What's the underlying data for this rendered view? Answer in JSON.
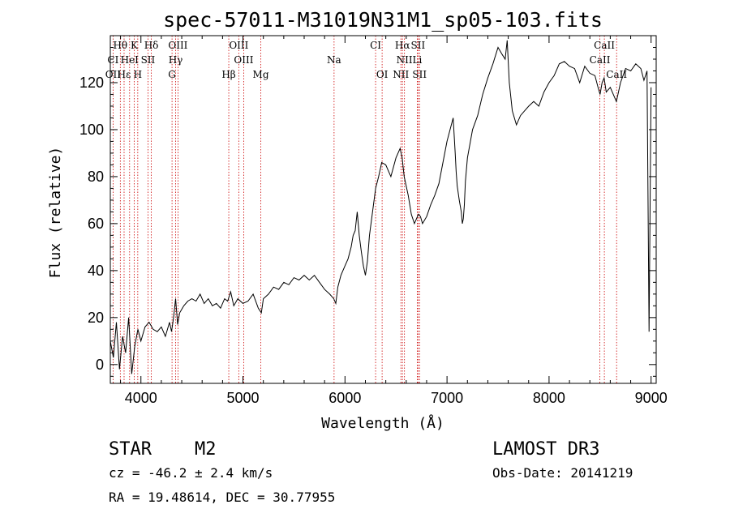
{
  "chart_data": {
    "type": "line",
    "title": "spec-57011-M31019N31M1_sp05-103.fits",
    "xlabel": "Wavelength (Å)",
    "ylabel": "Flux (relative)",
    "xlim": [
      3700,
      9050
    ],
    "ylim": [
      -8,
      140
    ],
    "xticks": [
      4000,
      5000,
      6000,
      7000,
      8000,
      9000
    ],
    "yticks": [
      0,
      20,
      40,
      60,
      80,
      100,
      120
    ],
    "series": [
      {
        "name": "spectrum",
        "x": [
          3700,
          3730,
          3760,
          3790,
          3820,
          3850,
          3880,
          3910,
          3940,
          3970,
          4000,
          4040,
          4080,
          4120,
          4160,
          4200,
          4240,
          4280,
          4300,
          4320,
          4340,
          4360,
          4380,
          4420,
          4460,
          4500,
          4540,
          4580,
          4620,
          4660,
          4700,
          4740,
          4780,
          4820,
          4850,
          4880,
          4910,
          4950,
          5000,
          5050,
          5100,
          5150,
          5180,
          5200,
          5250,
          5300,
          5350,
          5400,
          5450,
          5500,
          5550,
          5600,
          5650,
          5700,
          5750,
          5800,
          5850,
          5890,
          5910,
          5930,
          5960,
          6000,
          6030,
          6060,
          6080,
          6100,
          6120,
          6140,
          6160,
          6180,
          6200,
          6220,
          6240,
          6270,
          6300,
          6330,
          6360,
          6400,
          6450,
          6500,
          6540,
          6560,
          6580,
          6600,
          6620,
          6650,
          6680,
          6700,
          6720,
          6740,
          6760,
          6800,
          6840,
          6880,
          6920,
          6960,
          7000,
          7030,
          7060,
          7080,
          7090,
          7100,
          7120,
          7140,
          7150,
          7160,
          7170,
          7180,
          7200,
          7250,
          7300,
          7350,
          7400,
          7450,
          7500,
          7540,
          7570,
          7590,
          7610,
          7640,
          7680,
          7720,
          7760,
          7800,
          7850,
          7900,
          7950,
          8000,
          8050,
          8100,
          8150,
          8200,
          8250,
          8300,
          8350,
          8400,
          8450,
          8480,
          8500,
          8520,
          8540,
          8560,
          8600,
          8640,
          8660,
          8680,
          8700,
          8750,
          8800,
          8850,
          8900,
          8930,
          8960,
          8980,
          9000
        ],
        "y": [
          10,
          3,
          18,
          -2,
          12,
          5,
          20,
          -4,
          8,
          15,
          10,
          16,
          18,
          15,
          14,
          16,
          12,
          18,
          14,
          20,
          28,
          17,
          22,
          25,
          27,
          28,
          27,
          30,
          26,
          28,
          25,
          26,
          24,
          28,
          27,
          31,
          25,
          28,
          26,
          27,
          30,
          24,
          22,
          28,
          30,
          33,
          32,
          35,
          34,
          37,
          36,
          38,
          36,
          38,
          35,
          32,
          30,
          28,
          26,
          33,
          38,
          42,
          45,
          50,
          55,
          57,
          65,
          55,
          48,
          42,
          38,
          44,
          55,
          65,
          75,
          80,
          86,
          85,
          80,
          88,
          92,
          88,
          80,
          76,
          72,
          64,
          60,
          62,
          64,
          63,
          60,
          63,
          68,
          72,
          77,
          86,
          95,
          100,
          105,
          90,
          82,
          76,
          70,
          65,
          60,
          62,
          68,
          78,
          88,
          100,
          106,
          115,
          122,
          128,
          135,
          132,
          130,
          138,
          120,
          108,
          102,
          106,
          108,
          110,
          112,
          110,
          116,
          120,
          123,
          128,
          129,
          127,
          126,
          120,
          127,
          124,
          123,
          118,
          115,
          120,
          122,
          116,
          118,
          114,
          112,
          116,
          120,
          126,
          125,
          128,
          126,
          121,
          125,
          14,
          118
        ]
      }
    ],
    "spectral_lines": [
      {
        "name": "Hθ",
        "wave": 3798,
        "row": 1
      },
      {
        "name": "K",
        "wave": 3934,
        "row": 1
      },
      {
        "name": "Hδ",
        "wave": 4102,
        "row": 1
      },
      {
        "name": "OIII",
        "wave": 4363,
        "row": 1
      },
      {
        "name": "OIII",
        "wave": 4959,
        "row": 1
      },
      {
        "name": "CI",
        "wave": 6300,
        "row": 1
      },
      {
        "name": "Hα",
        "wave": 6563,
        "row": 1
      },
      {
        "name": "SII",
        "wave": 6716,
        "row": 1
      },
      {
        "name": "CaII",
        "wave": 8542,
        "row": 1
      },
      {
        "name": "CI",
        "wave": 3727,
        "row": 2
      },
      {
        "name": "HeI",
        "wave": 3889,
        "row": 2
      },
      {
        "name": "SII",
        "wave": 4069,
        "row": 2
      },
      {
        "name": "Hγ",
        "wave": 4340,
        "row": 2
      },
      {
        "name": "OIII",
        "wave": 5007,
        "row": 2
      },
      {
        "name": "Na",
        "wave": 5893,
        "row": 2
      },
      {
        "name": "NII",
        "wave": 6583,
        "row": 2
      },
      {
        "name": "Li",
        "wave": 6708,
        "row": 2
      },
      {
        "name": "CaII",
        "wave": 8498,
        "row": 2
      },
      {
        "name": "OII",
        "wave": 3727,
        "row": 3
      },
      {
        "name": "Hε",
        "wave": 3835,
        "row": 3
      },
      {
        "name": "H",
        "wave": 3969,
        "row": 3
      },
      {
        "name": "G",
        "wave": 4305,
        "row": 3
      },
      {
        "name": "Hβ",
        "wave": 4861,
        "row": 3
      },
      {
        "name": "Mg",
        "wave": 5175,
        "row": 3
      },
      {
        "name": "OI",
        "wave": 6364,
        "row": 3
      },
      {
        "name": "NII",
        "wave": 6548,
        "row": 3
      },
      {
        "name": "SII",
        "wave": 6731,
        "row": 3
      },
      {
        "name": "CaII",
        "wave": 8662,
        "row": 3
      }
    ],
    "marker_lines": [
      3727,
      3798,
      3835,
      3889,
      3934,
      3969,
      4069,
      4102,
      4305,
      4340,
      4363,
      4861,
      4959,
      5007,
      5175,
      5893,
      6300,
      6364,
      6548,
      6563,
      6583,
      6708,
      6716,
      6731,
      8498,
      8542,
      8662
    ],
    "line_color": "#000000",
    "marker_color": "#cc0000"
  },
  "footer": {
    "object_class": "STAR",
    "subclass": "M2",
    "survey": "LAMOST DR3",
    "redshift": "cz = -46.2 ± 2.4 km/s",
    "obs_date": "Obs-Date: 20141219",
    "coords": "RA =  19.48614, DEC =  30.77955"
  }
}
